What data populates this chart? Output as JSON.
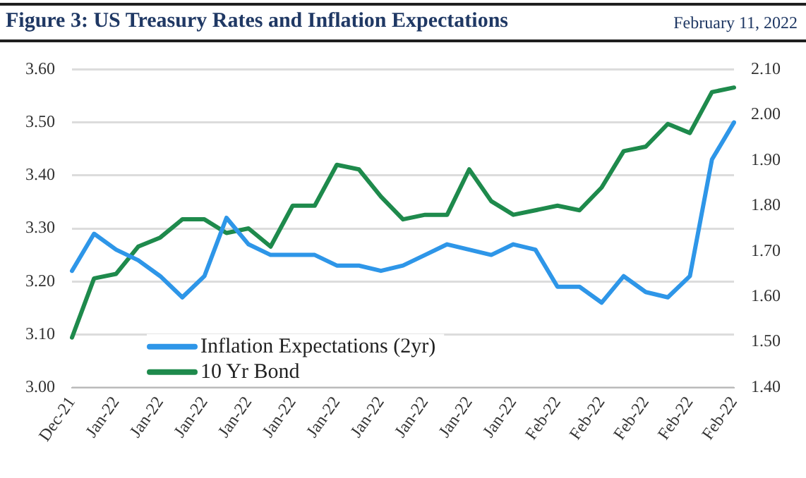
{
  "chart_data": {
    "type": "line",
    "title": "Figure 3: US Treasury Rates and Inflation Expectations",
    "subtitle": "February 11, 2022",
    "categories": [
      "Dec-21",
      null,
      "Jan-22",
      null,
      "Jan-22",
      null,
      "Jan-22",
      null,
      "Jan-22",
      null,
      "Jan-22",
      null,
      "Jan-22",
      null,
      "Jan-22",
      null,
      "Jan-22",
      null,
      "Jan-22",
      null,
      "Jan-22",
      null,
      "Feb-22",
      null,
      "Feb-22",
      null,
      "Feb-22",
      null,
      "Feb-22",
      null,
      "Feb-22"
    ],
    "series": [
      {
        "name": "Inflation Expectations (2yr)",
        "color": "#2e96e8",
        "values": [
          3.22,
          3.29,
          3.26,
          3.24,
          3.21,
          3.17,
          3.21,
          3.32,
          3.27,
          3.25,
          3.25,
          3.25,
          3.23,
          3.23,
          3.22,
          3.23,
          3.25,
          3.27,
          3.26,
          3.25,
          3.27,
          3.26,
          3.19,
          3.19,
          3.16,
          3.21,
          3.18,
          3.17,
          3.21,
          3.43,
          3.5
        ]
      },
      {
        "name": "10 Yr Bond",
        "color": "#1e8a4c",
        "axis": "y2",
        "values": [
          1.51,
          1.64,
          1.65,
          1.71,
          1.73,
          1.77,
          1.77,
          1.74,
          1.75,
          1.71,
          1.8,
          1.8,
          1.89,
          1.88,
          1.82,
          1.77,
          1.78,
          1.78,
          1.88,
          1.81,
          1.78,
          1.79,
          1.8,
          1.79,
          1.84,
          1.92,
          1.93,
          1.98,
          1.96,
          2.05,
          2.06
        ]
      }
    ],
    "ylim": [
      3.0,
      3.6
    ],
    "yticks": [
      {
        "value": 3.0,
        "label": "3.00"
      },
      {
        "value": 3.1,
        "label": "3.10"
      },
      {
        "value": 3.2,
        "label": "3.20"
      },
      {
        "value": 3.3,
        "label": "3.30"
      },
      {
        "value": 3.4,
        "label": "3.40"
      },
      {
        "value": 3.5,
        "label": "3.50"
      },
      {
        "value": 3.6,
        "label": "3.60"
      }
    ],
    "y2lim": [
      1.4,
      2.1
    ],
    "y2ticks": [
      {
        "value": 1.4,
        "label": "1.40"
      },
      {
        "value": 1.5,
        "label": "1.50"
      },
      {
        "value": 1.6,
        "label": "1.60"
      },
      {
        "value": 1.7,
        "label": "1.70"
      },
      {
        "value": 1.8,
        "label": "1.80"
      },
      {
        "value": 1.9,
        "label": "1.90"
      },
      {
        "value": 2.0,
        "label": "2.00"
      },
      {
        "value": 2.1,
        "label": "2.10"
      }
    ],
    "grid": "y",
    "legend": "bottom left",
    "marker": "none",
    "line_style": "solid"
  }
}
